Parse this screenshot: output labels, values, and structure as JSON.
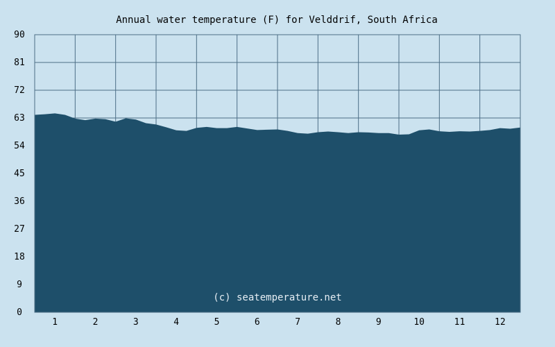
{
  "chart_data": {
    "type": "area",
    "title": "Annual water temperature (F) for Velddrif, South Africa",
    "xlabel": "",
    "ylabel": "",
    "x_ticks": [
      "1",
      "2",
      "3",
      "4",
      "5",
      "6",
      "7",
      "8",
      "9",
      "10",
      "11",
      "12"
    ],
    "y_ticks": [
      "0",
      "9",
      "18",
      "27",
      "36",
      "45",
      "54",
      "63",
      "72",
      "81",
      "90"
    ],
    "xlim": [
      0.5,
      12.5
    ],
    "ylim": [
      0,
      90
    ],
    "grid": true,
    "watermark": "(c) seatemperature.net",
    "colors": {
      "background": "#cbe2ef",
      "fill": "#1e4f6a",
      "grid": "#4d6f86",
      "text": "#000000"
    },
    "series": [
      {
        "x": [
          0.5,
          0.75,
          1.0,
          1.25,
          1.5,
          1.75,
          2.0,
          2.25,
          2.5,
          2.75,
          3.0,
          3.25,
          3.5,
          3.75,
          4.0,
          4.25,
          4.5,
          4.75,
          5.0,
          5.25,
          5.5,
          5.75,
          6.0,
          6.25,
          6.5,
          6.75,
          7.0,
          7.25,
          7.5,
          7.75,
          8.0,
          8.25,
          8.5,
          8.75,
          9.0,
          9.25,
          9.5,
          9.75,
          10.0,
          10.25,
          10.5,
          10.75,
          11.0,
          11.25,
          11.5,
          11.75,
          12.0,
          12.25,
          12.5
        ],
        "values": [
          64.0,
          64.2,
          64.5,
          64.0,
          62.8,
          62.3,
          62.8,
          62.6,
          61.8,
          62.9,
          62.5,
          61.3,
          60.9,
          60.0,
          59.0,
          58.8,
          59.8,
          60.1,
          59.7,
          59.7,
          60.1,
          59.6,
          59.1,
          59.2,
          59.3,
          58.8,
          58.1,
          57.9,
          58.4,
          58.6,
          58.4,
          58.1,
          58.4,
          58.3,
          58.1,
          58.1,
          57.6,
          57.7,
          59.0,
          59.3,
          58.7,
          58.5,
          58.7,
          58.6,
          58.8,
          59.1,
          59.7,
          59.5,
          59.9
        ]
      }
    ]
  }
}
